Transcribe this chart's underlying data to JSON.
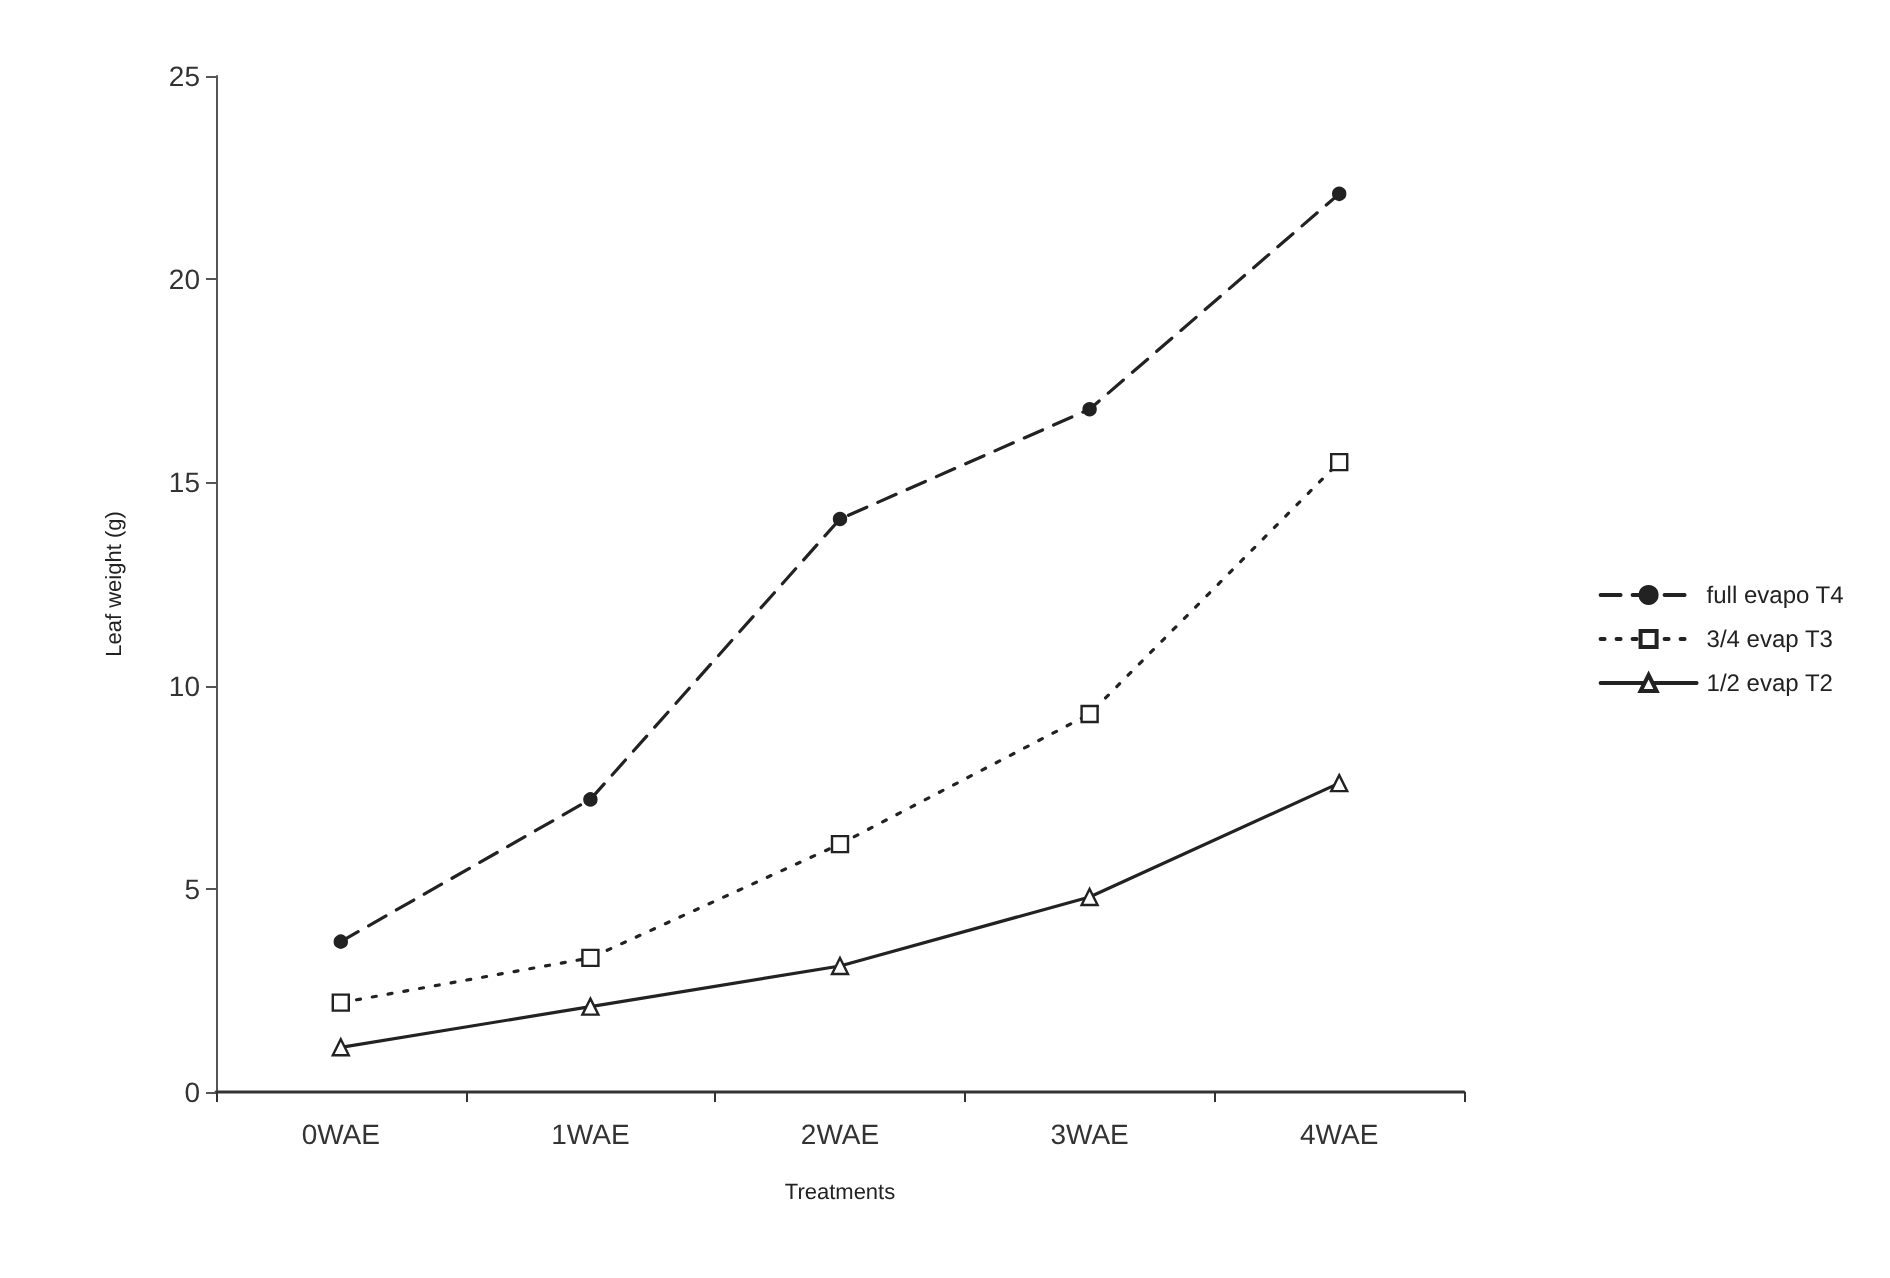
{
  "chart_data": {
    "type": "line",
    "xlabel": "Treatments",
    "ylabel": "Leaf weight (g)",
    "categories": [
      "0WAE",
      "1WAE",
      "2WAE",
      "3WAE",
      "4WAE"
    ],
    "series": [
      {
        "name": "full evapo T4",
        "color": "#222222",
        "line_style": "dashed",
        "marker": "circle",
        "values": [
          3.7,
          7.2,
          14.1,
          16.8,
          22.1
        ]
      },
      {
        "name": "3/4 evap T3",
        "color": "#222222",
        "line_style": "dotted",
        "marker": "square",
        "values": [
          2.2,
          3.3,
          6.1,
          9.3,
          15.5
        ]
      },
      {
        "name": "1/2 evap T2",
        "color": "#222222",
        "line_style": "solid",
        "marker": "triangle",
        "values": [
          1.1,
          2.1,
          3.1,
          4.8,
          7.6
        ]
      }
    ],
    "ylim": [
      0,
      25
    ],
    "yticks": [
      0,
      5,
      10,
      15,
      20,
      25
    ],
    "grid": false,
    "legend": "right"
  }
}
